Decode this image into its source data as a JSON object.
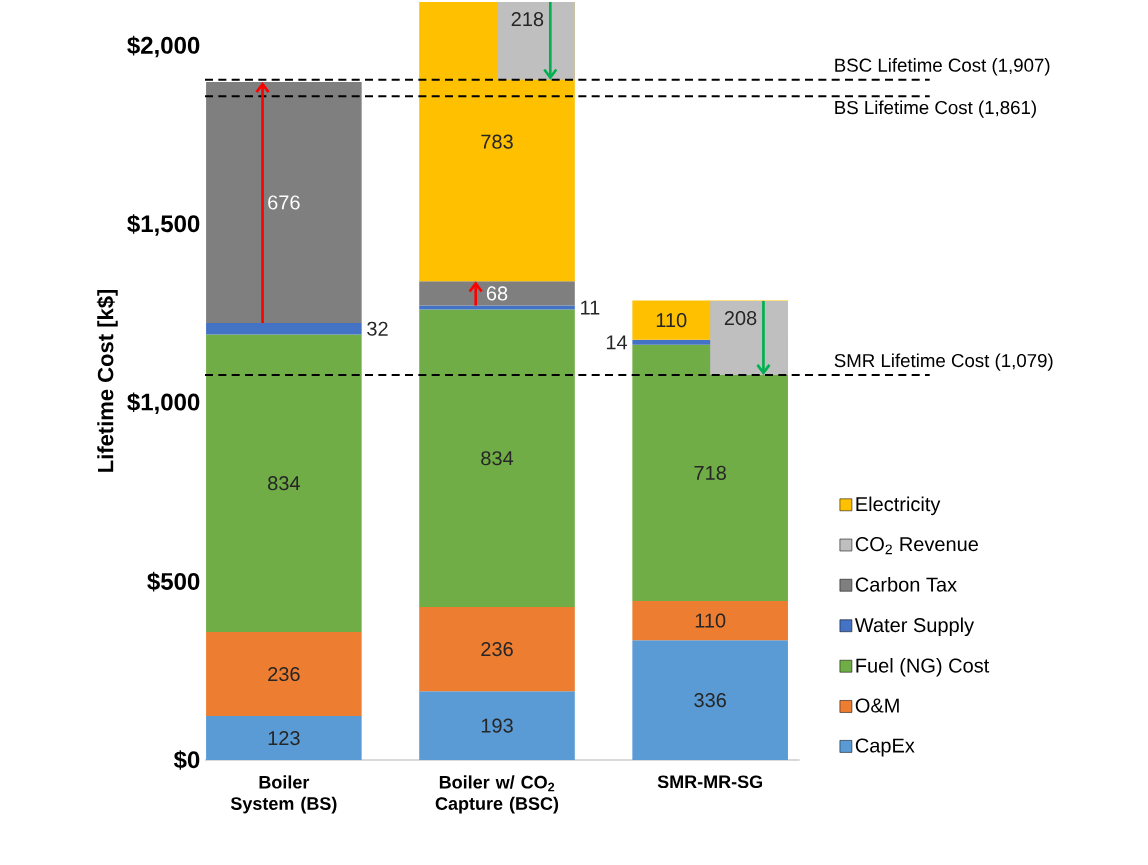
{
  "chart_data": {
    "type": "bar",
    "ylabel": "Lifetime Cost [k$]",
    "categories": [
      "Boiler System (BS)",
      "Boiler w/ CO$_{2}$ Capture (BSC)",
      "SMR-MR-SG"
    ],
    "series": [
      {
        "name": "CapEx",
        "color": "#5b9bd5",
        "values": [
          123,
          193,
          336
        ],
        "base": [
          0,
          0,
          0
        ]
      },
      {
        "name": "O&M",
        "color": "#ed7d31",
        "values": [
          236,
          236,
          110
        ],
        "base": [
          123,
          193,
          336
        ]
      },
      {
        "name": "Fuel (NG) Cost",
        "color": "#70ad47",
        "values": [
          834,
          834,
          718
        ],
        "base": [
          359,
          429,
          446
        ]
      },
      {
        "name": "Water Supply",
        "color": "#4472c4",
        "values": [
          32,
          11,
          14
        ],
        "base": [
          1193,
          1263,
          1164
        ]
      },
      {
        "name": "Carbon Tax",
        "color": "#7f7f7f",
        "values": [
          676,
          68,
          null
        ],
        "base": [
          1225,
          1274,
          null
        ]
      },
      {
        "name": "CO$_{2}$ Revenue",
        "color": "#bfbfbf",
        "values": [
          null,
          218,
          208
        ],
        "base": [
          null,
          1907,
          1079
        ]
      },
      {
        "name": "Electricity",
        "color": "#ffc000",
        "values": [
          null,
          783,
          110
        ],
        "base": [
          null,
          1342,
          1178
        ]
      }
    ],
    "ylim": [
      0,
      2125
    ],
    "yticks": [
      {
        "value": 0,
        "label": "$0"
      },
      {
        "value": 500,
        "label": "$500"
      },
      {
        "value": 1000,
        "label": "$1,000"
      },
      {
        "value": 1500,
        "label": "$1,500"
      },
      {
        "value": 2000,
        "label": "$2,000"
      }
    ],
    "ref_lines": [
      {
        "axis": "y",
        "value": 1907,
        "label": "BSC Lifetime Cost (1,907)",
        "color": "#000000",
        "line_style": "dashed"
      },
      {
        "axis": "y",
        "value": 1861,
        "label": "BS Lifetime Cost (1,861)",
        "color": "#000000",
        "line_style": "dashed"
      },
      {
        "axis": "y",
        "value": 1079,
        "label": "SMR Lifetime Cost (1,079)",
        "color": "#000000",
        "line_style": "dashed"
      }
    ],
    "legend": "right",
    "data_labels": true
  }
}
